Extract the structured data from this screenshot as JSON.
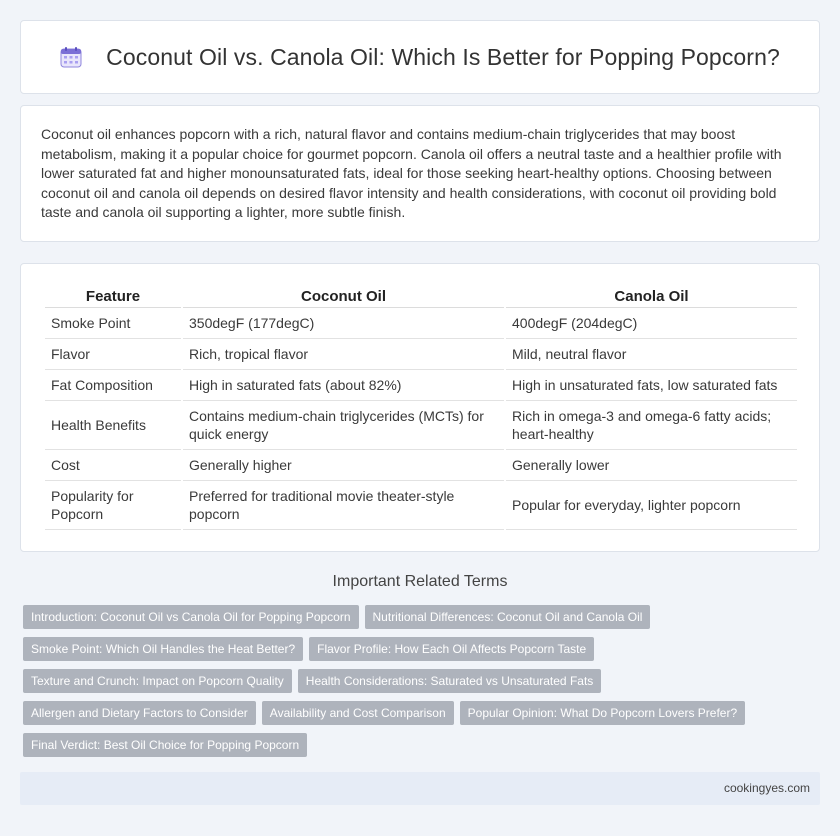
{
  "header": {
    "title": "Coconut Oil vs. Canola Oil: Which Is Better for Popping Popcorn?",
    "icon": "calendar-icon"
  },
  "intro": {
    "text": "Coconut oil enhances popcorn with a rich, natural flavor and contains medium-chain triglycerides that may boost metabolism, making it a popular choice for gourmet popcorn. Canola oil offers a neutral taste and a healthier profile with lower saturated fat and higher monounsaturated fats, ideal for those seeking heart-healthy options. Choosing between coconut oil and canola oil depends on desired flavor intensity and health considerations, with coconut oil providing bold taste and canola oil supporting a lighter, more subtle finish."
  },
  "table": {
    "headers": [
      "Feature",
      "Coconut Oil",
      "Canola Oil"
    ],
    "rows": [
      [
        "Smoke Point",
        "350degF (177degC)",
        "400degF (204degC)"
      ],
      [
        "Flavor",
        "Rich, tropical flavor",
        "Mild, neutral flavor"
      ],
      [
        "Fat Composition",
        "High in saturated fats (about 82%)",
        "High in unsaturated fats, low saturated fats"
      ],
      [
        "Health Benefits",
        "Contains medium-chain triglycerides (MCTs) for quick energy",
        "Rich in omega-3 and omega-6 fatty acids; heart-healthy"
      ],
      [
        "Cost",
        "Generally higher",
        "Generally lower"
      ],
      [
        "Popularity for Popcorn",
        "Preferred for traditional movie theater-style popcorn",
        "Popular for everyday, lighter popcorn"
      ]
    ]
  },
  "terms": {
    "title": "Important Related Terms",
    "items": [
      "Introduction: Coconut Oil vs Canola Oil for Popping Popcorn",
      "Nutritional Differences: Coconut Oil and Canola Oil",
      "Smoke Point: Which Oil Handles the Heat Better?",
      "Flavor Profile: How Each Oil Affects Popcorn Taste",
      "Texture and Crunch: Impact on Popcorn Quality",
      "Health Considerations: Saturated vs Unsaturated Fats",
      "Allergen and Dietary Factors to Consider",
      "Availability and Cost Comparison",
      "Popular Opinion: What Do Popcorn Lovers Prefer?",
      "Final Verdict: Best Oil Choice for Popping Popcorn"
    ]
  },
  "footer": {
    "site": "cookingyes.com"
  },
  "colors": {
    "background": "#f1f4f9",
    "tag": "#aeb3bc",
    "footer": "#e6ecf6",
    "icon_accent": "#7b6fd6"
  }
}
